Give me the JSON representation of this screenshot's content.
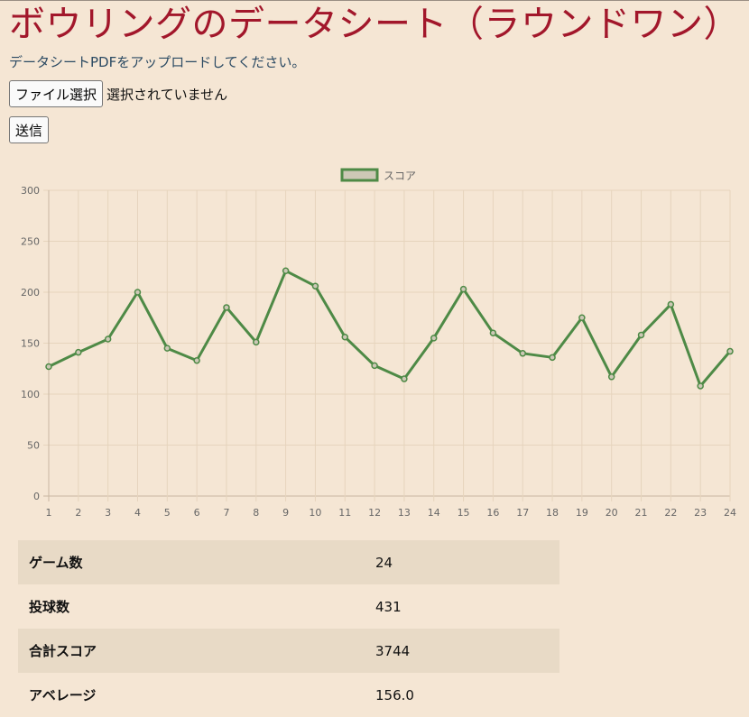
{
  "page": {
    "title": "ボウリングのデータシート（ラウンドワン）",
    "instruction": "データシートPDFをアップロードしてください。"
  },
  "upload": {
    "choose_label": "ファイル選択",
    "status": "選択されていません",
    "submit_label": "送信"
  },
  "colors": {
    "accent": "#a2172b",
    "line": "#4e8a46",
    "background": "#f5e6d4"
  },
  "chart_data": {
    "type": "line",
    "x": [
      1,
      2,
      3,
      4,
      5,
      6,
      7,
      8,
      9,
      10,
      11,
      12,
      13,
      14,
      15,
      16,
      17,
      18,
      19,
      20,
      21,
      22,
      23,
      24
    ],
    "series": [
      {
        "name": "スコア",
        "values": [
          127,
          141,
          154,
          200,
          145,
          133,
          185,
          151,
          221,
          206,
          156,
          128,
          115,
          155,
          203,
          160,
          140,
          136,
          175,
          117,
          158,
          188,
          108,
          142
        ]
      }
    ],
    "y_ticks": [
      0,
      50,
      100,
      150,
      200,
      250,
      300
    ],
    "ylim": [
      0,
      300
    ],
    "grid": true,
    "legend": "top-center"
  },
  "stats": [
    {
      "label": "ゲーム数",
      "value": "24"
    },
    {
      "label": "投球数",
      "value": "431"
    },
    {
      "label": "合計スコア",
      "value": "3744"
    },
    {
      "label": "アベレージ",
      "value": "156.0"
    }
  ]
}
